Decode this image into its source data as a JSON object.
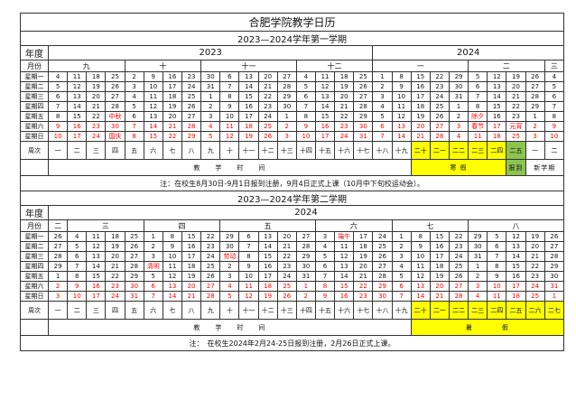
{
  "title": "合肥学院教学日历",
  "labels": {
    "year": "年度",
    "month": "月份",
    "weekdays": [
      "星期一",
      "星期二",
      "星期三",
      "星期四",
      "星期五",
      "星期六",
      "星期日"
    ],
    "week": "周次"
  },
  "colors": {
    "holiday_text": "#ff0000",
    "vacation": "#ffff00",
    "registration": "#8dc450"
  },
  "semesters": [
    {
      "title": "2023—2024学年第一学期",
      "years": [
        {
          "label": "2023",
          "span": 17
        },
        {
          "label": "2024",
          "span": 10
        }
      ],
      "months": [
        {
          "label": "九",
          "span": 4
        },
        {
          "label": "十",
          "span": 4
        },
        {
          "label": "十一",
          "span": 5
        },
        {
          "label": "十二",
          "span": 4
        },
        {
          "label": "一",
          "span": 5
        },
        {
          "label": "二",
          "span": 4
        },
        {
          "label": "三",
          "span": 1
        }
      ],
      "days": [
        [
          "4",
          "11",
          "18",
          "25",
          "2",
          "9",
          "16",
          "23",
          "30",
          "6",
          "13",
          "20",
          "27",
          "4",
          "11",
          "18",
          "25",
          "1",
          "8",
          "15",
          "22",
          "29",
          "5",
          "12",
          "19",
          "26",
          "4"
        ],
        [
          "5",
          "12",
          "19",
          "26",
          "3",
          "10",
          "17",
          "24",
          "31",
          "7",
          "14",
          "21",
          "28",
          "5",
          "12",
          "19",
          "26",
          "2",
          "9",
          "16",
          "23",
          "30",
          "6",
          "13",
          "20",
          "27",
          "5"
        ],
        [
          "6",
          "13",
          "20",
          "27",
          "4",
          "11",
          "18",
          "25",
          "1",
          "8",
          "15",
          "22",
          "29",
          "6",
          "13",
          "20",
          "27",
          "3",
          "10",
          "17",
          "24",
          "31",
          "7",
          "14",
          "21",
          "28",
          "6"
        ],
        [
          "7",
          "14",
          "21",
          "28",
          "5",
          "12",
          "19",
          "26",
          "2",
          "9",
          "16",
          "23",
          "30",
          "7",
          "14",
          "21",
          "28",
          "4",
          "11",
          "18",
          "25",
          "1",
          "8",
          "15",
          "22",
          "29",
          "7"
        ],
        [
          "8",
          "15",
          "22",
          "中秋",
          "6",
          "13",
          "20",
          "27",
          "3",
          "10",
          "17",
          "24",
          "1",
          "8",
          "15",
          "22",
          "29",
          "5",
          "12",
          "19",
          "26",
          "2",
          "除夕",
          "16",
          "23",
          "1",
          "8"
        ],
        [
          "9",
          "16",
          "23",
          "30",
          "7",
          "14",
          "21",
          "28",
          "4",
          "11",
          "18",
          "25",
          "2",
          "9",
          "16",
          "23",
          "30",
          "6",
          "13",
          "20",
          "27",
          "3",
          "春节",
          "17",
          "元宵",
          "2",
          "9"
        ],
        [
          "10",
          "17",
          "24",
          "国庆",
          "8",
          "15",
          "22",
          "29",
          "5",
          "12",
          "19",
          "26",
          "3",
          "10",
          "17",
          "24",
          "31",
          "7",
          "14",
          "21",
          "28",
          "4",
          "11",
          "18",
          "25",
          "3",
          "10"
        ]
      ],
      "weeks": [
        "一",
        "二",
        "三",
        "四",
        "五",
        "六",
        "七",
        "八",
        "九",
        "十",
        "十一",
        "十二",
        "十三",
        "十四",
        "十五",
        "十六",
        "十七",
        "十八",
        "十九",
        "二十",
        "二一",
        "二二",
        "二三",
        "二四",
        "二五",
        "一",
        "二"
      ],
      "week_highlight": [
        "",
        "",
        "",
        "",
        "",
        "",
        "",
        "",
        "",
        "",
        "",
        "",
        "",
        "",
        "",
        "",
        "",
        "",
        "",
        "yellow",
        "yellow",
        "yellow",
        "yellow",
        "yellow",
        "green",
        "",
        ""
      ],
      "segments": [
        {
          "label": "教　　学　　时　　间",
          "span": 19,
          "color": ""
        },
        {
          "label": "寒 假",
          "span": 5,
          "color": "yellow"
        },
        {
          "label": "报到",
          "span": 1,
          "color": "green"
        },
        {
          "label": "新学期",
          "span": 2,
          "color": ""
        }
      ],
      "note": "注：在校生8月30日-9月1日报到注册，9月4日正式上课（10月中下旬校运动会）。"
    },
    {
      "title": "2023—2024学年第二学期",
      "years": [
        {
          "label": "2024",
          "span": 27
        }
      ],
      "months": [
        {
          "label": "二",
          "span": 1
        },
        {
          "label": "三",
          "span": 4
        },
        {
          "label": "四",
          "span": 4
        },
        {
          "label": "五",
          "span": 5
        },
        {
          "label": "六",
          "span": 4
        },
        {
          "label": "七",
          "span": 4
        },
        {
          "label": "八",
          "span": 5
        }
      ],
      "days": [
        [
          "26",
          "4",
          "11",
          "18",
          "25",
          "1",
          "8",
          "15",
          "22",
          "29",
          "6",
          "13",
          "20",
          "27",
          "3",
          "端午",
          "17",
          "24",
          "1",
          "8",
          "15",
          "22",
          "29",
          "5",
          "12",
          "19",
          "26"
        ],
        [
          "27",
          "5",
          "12",
          "19",
          "26",
          "2",
          "9",
          "16",
          "23",
          "30",
          "7",
          "14",
          "21",
          "28",
          "4",
          "11",
          "18",
          "25",
          "2",
          "9",
          "16",
          "23",
          "30",
          "6",
          "13",
          "20",
          "27"
        ],
        [
          "28",
          "6",
          "13",
          "20",
          "27",
          "3",
          "10",
          "17",
          "24",
          "劳动",
          "8",
          "15",
          "22",
          "29",
          "5",
          "12",
          "19",
          "26",
          "3",
          "10",
          "17",
          "24",
          "31",
          "7",
          "14",
          "21",
          "28"
        ],
        [
          "29",
          "7",
          "14",
          "21",
          "28",
          "清明",
          "11",
          "18",
          "25",
          "2",
          "9",
          "16",
          "23",
          "30",
          "6",
          "13",
          "20",
          "27",
          "4",
          "11",
          "18",
          "25",
          "1",
          "8",
          "15",
          "22",
          "29"
        ],
        [
          "1",
          "8",
          "15",
          "22",
          "29",
          "5",
          "12",
          "19",
          "26",
          "3",
          "10",
          "17",
          "24",
          "31",
          "7",
          "14",
          "21",
          "28",
          "5",
          "12",
          "19",
          "26",
          "2",
          "9",
          "16",
          "23",
          "30"
        ],
        [
          "2",
          "9",
          "16",
          "23",
          "30",
          "6",
          "13",
          "20",
          "27",
          "4",
          "11",
          "18",
          "25",
          "1",
          "8",
          "15",
          "22",
          "29",
          "6",
          "13",
          "20",
          "27",
          "3",
          "10",
          "17",
          "24",
          "31"
        ],
        [
          "3",
          "10",
          "17",
          "24",
          "31",
          "7",
          "14",
          "21",
          "28",
          "5",
          "12",
          "19",
          "26",
          "2",
          "9",
          "16",
          "23",
          "30",
          "7",
          "14",
          "21",
          "28",
          "4",
          "11",
          "18",
          "25",
          "1"
        ]
      ],
      "weeks": [
        "一",
        "二",
        "三",
        "四",
        "五",
        "六",
        "七",
        "八",
        "九",
        "十",
        "十一",
        "十二",
        "十三",
        "十四",
        "十五",
        "十六",
        "十七",
        "十八",
        "十九",
        "二十",
        "二一",
        "二二",
        "二三",
        "二四",
        "二五",
        "二六",
        "二七"
      ],
      "week_highlight": [
        "",
        "",
        "",
        "",
        "",
        "",
        "",
        "",
        "",
        "",
        "",
        "",
        "",
        "",
        "",
        "",
        "",
        "",
        "",
        "yellow",
        "yellow",
        "yellow",
        "yellow",
        "yellow",
        "yellow",
        "yellow",
        "yellow"
      ],
      "segments": [
        {
          "label": "教　　学　　时　　间",
          "span": 19,
          "color": ""
        },
        {
          "label": "暑　　　　假",
          "span": 8,
          "color": "yellow"
        }
      ],
      "note": "注：　在校生2024年2月24-25日报到注册，2月26日正式上课。"
    }
  ]
}
